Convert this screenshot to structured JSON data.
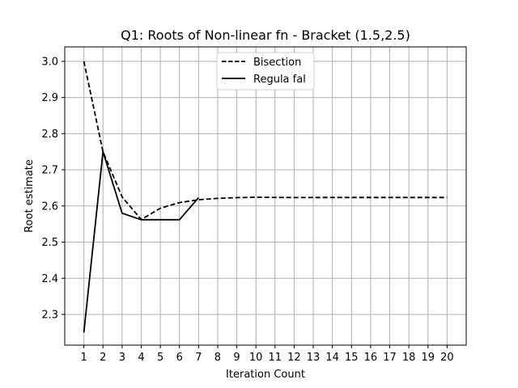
{
  "chart_data": {
    "type": "line",
    "title": "Q1: Roots of Non-linear fn - Bracket (1.5,2.5)",
    "xlabel": "Iteration Count",
    "ylabel": "Root estimate",
    "xlim": [
      0.0,
      21.0
    ],
    "ylim": [
      2.215,
      3.04
    ],
    "xticks": [
      "1",
      "2",
      "3",
      "4",
      "5",
      "6",
      "7",
      "8",
      "9",
      "10",
      "11",
      "12",
      "13",
      "14",
      "15",
      "16",
      "17",
      "18",
      "19",
      "20"
    ],
    "yticks": [
      "2.3",
      "2.4",
      "2.5",
      "2.6",
      "2.7",
      "2.8",
      "2.9",
      "3.0"
    ],
    "grid": true,
    "legend_position": "top-center",
    "series": [
      {
        "name": "Bisection",
        "style": "dashed",
        "color": "#000000",
        "x": [
          1,
          2,
          3,
          4,
          5,
          6,
          7,
          8,
          9,
          10,
          11,
          12,
          13,
          14,
          15,
          16,
          17,
          18,
          19,
          20
        ],
        "values": [
          3.0,
          2.75,
          2.625,
          2.5625,
          2.59375,
          2.609375,
          2.6171875,
          2.62109375,
          2.623046875,
          2.6240234375,
          2.62353515625,
          2.623291015625,
          2.6234130859375,
          2.62347412109375,
          2.623443603515625,
          2.6234588623046875,
          2.623451232910156,
          2.623455047607422,
          2.623453140258789,
          2.6234540939331055
        ]
      },
      {
        "name": "Regula fal",
        "style": "solid",
        "color": "#000000",
        "x": [
          1,
          2,
          3,
          4,
          5,
          6,
          7
        ],
        "values": [
          2.25,
          2.75,
          2.58,
          2.562,
          2.562,
          2.562,
          2.623
        ]
      }
    ]
  }
}
